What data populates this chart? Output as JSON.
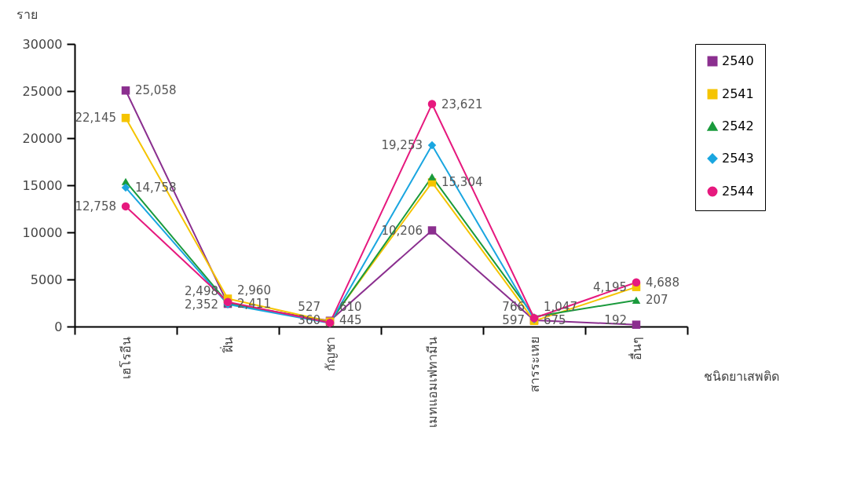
{
  "chart_data": {
    "type": "line",
    "ylabel": "ราย",
    "xlabel": "ชนิดยาเสพติด",
    "categories": [
      "เฮโรอีน",
      "ฝิ่น",
      "กัญชา",
      "เมทแอมเฟทามีน",
      "สารระเหย",
      "อื่นๆ"
    ],
    "ylim": [
      0,
      30000
    ],
    "yticks": [
      0,
      5000,
      10000,
      15000,
      20000,
      25000,
      30000
    ],
    "data_labels": false,
    "grid": false,
    "legend": "right",
    "series": [
      {
        "name": "2540",
        "color": "#8b2f8f",
        "marker": "square",
        "values": [
          25058,
          2411,
          610,
          10206,
          675,
          192
        ],
        "value_labels": [
          "25,058",
          "2,411",
          "610",
          "10,206",
          "675",
          "192"
        ]
      },
      {
        "name": "2541",
        "color": "#f5c400",
        "marker": "square",
        "values": [
          22145,
          2960,
          527,
          15304,
          597,
          4195
        ],
        "value_labels": [
          "22,145",
          "2,960",
          "527",
          "15,304",
          "597",
          "4,195"
        ]
      },
      {
        "name": "2542",
        "color": "#1a9a3c",
        "marker": "triangle",
        "values": [
          15400,
          2498,
          445,
          15900,
          1047,
          2800
        ],
        "value_labels": [
          null,
          "2,498",
          "445",
          null,
          "1,047",
          null
        ]
      },
      {
        "name": "2543",
        "color": "#1aa6e0",
        "marker": "diamond",
        "values": [
          14758,
          2352,
          360,
          19253,
          766,
          null
        ],
        "value_labels": [
          "14,758",
          "2,352",
          "360",
          "19,253",
          "766",
          null
        ]
      },
      {
        "name": "2544",
        "color": "#e6197e",
        "marker": "circle",
        "values": [
          12758,
          2600,
          400,
          23621,
          900,
          4688
        ],
        "value_labels": [
          "12,758",
          null,
          null,
          "23,621",
          null,
          "4,688"
        ]
      }
    ],
    "annotations": [
      {
        "text": "207",
        "x": "อื่นๆ",
        "y": 2800
      }
    ]
  }
}
